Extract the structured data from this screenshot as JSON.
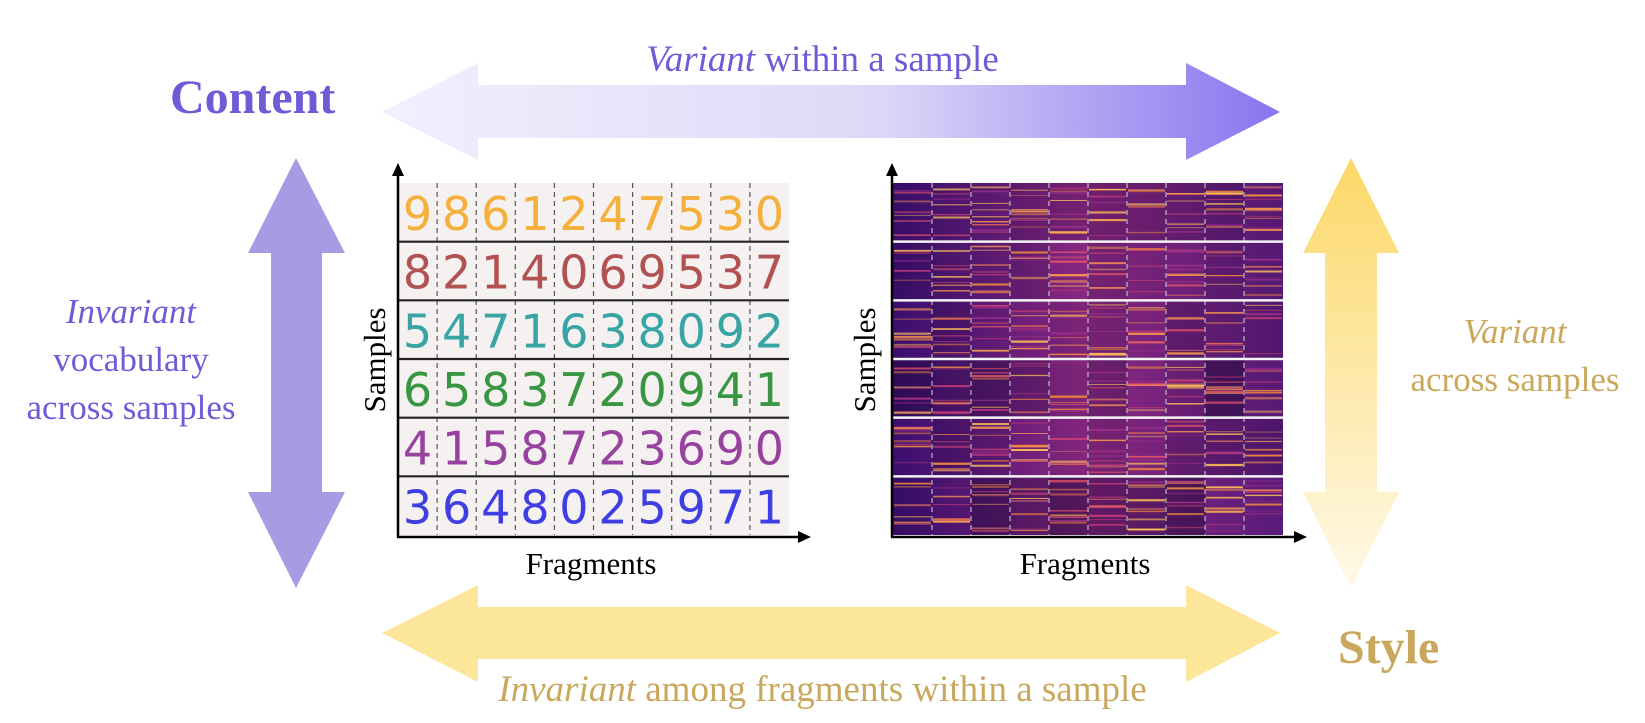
{
  "content_title": "Content",
  "style_title": "Style",
  "top_caption": {
    "italic": "Variant",
    "rest": " within a sample"
  },
  "bottom_caption": {
    "italic": "Invariant",
    "rest": " among fragments within a sample"
  },
  "left_caption": {
    "italic": "Invariant",
    "line2": "vocabulary",
    "line3": "across samples"
  },
  "right_caption": {
    "italic": "Variant",
    "line2": "across samples"
  },
  "digit_panel": {
    "y_label": "Samples",
    "x_label": "Fragments",
    "rows": [
      {
        "digits": "9861247530",
        "color": "#f5a623"
      },
      {
        "digits": "8214069537",
        "color": "#a83b3b"
      },
      {
        "digits": "5471638092",
        "color": "#1f9a9a"
      },
      {
        "digits": "6583720941",
        "color": "#1e8a2a"
      },
      {
        "digits": "4158723690",
        "color": "#8b2a93"
      },
      {
        "digits": "3648025971",
        "color": "#2626e0"
      }
    ]
  },
  "spectrogram_panel": {
    "y_label": "Samples",
    "x_label": "Fragments"
  },
  "colors": {
    "content_purple": "#6f5bd6",
    "style_gold": "#c9a85e",
    "arrow_purple": "#8e7ff0",
    "arrow_gold": "#f6e08a"
  }
}
